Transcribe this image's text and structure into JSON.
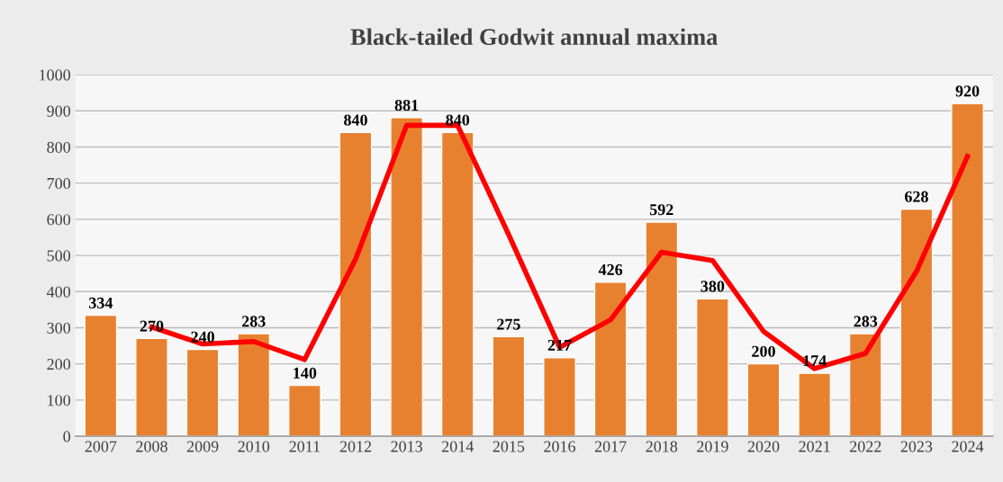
{
  "chart_data": {
    "type": "bar",
    "title": "Black-tailed Godwit annual maxima",
    "categories": [
      "2007",
      "2008",
      "2009",
      "2010",
      "2011",
      "2012",
      "2013",
      "2014",
      "2015",
      "2016",
      "2017",
      "2018",
      "2019",
      "2020",
      "2021",
      "2022",
      "2023",
      "2024"
    ],
    "series": [
      {
        "color": "#e8812f",
        "values": [
          334,
          270,
          240,
          283,
          140,
          840,
          881,
          840,
          275,
          217,
          426,
          592,
          380,
          200,
          174,
          283,
          628,
          920
        ],
        "value_labels": [
          "334",
          "270",
          "240",
          "283",
          "140",
          "840",
          "881",
          "840",
          "275",
          "217",
          "426",
          "592",
          "380",
          "200",
          "174",
          "283",
          "628",
          "920"
        ]
      },
      {
        "type": "line",
        "color": "#ff0000",
        "values": [
          null,
          302,
          255,
          262,
          212,
          490,
          860,
          860,
          558,
          246,
          322,
          509,
          486,
          290,
          187,
          229,
          456,
          774
        ]
      }
    ],
    "ylim": [
      0,
      1000
    ],
    "yticks": [
      0,
      100,
      200,
      300,
      400,
      500,
      600,
      700,
      800,
      900,
      1000
    ],
    "grid": "y",
    "line_style": "solid",
    "marker": "none"
  }
}
